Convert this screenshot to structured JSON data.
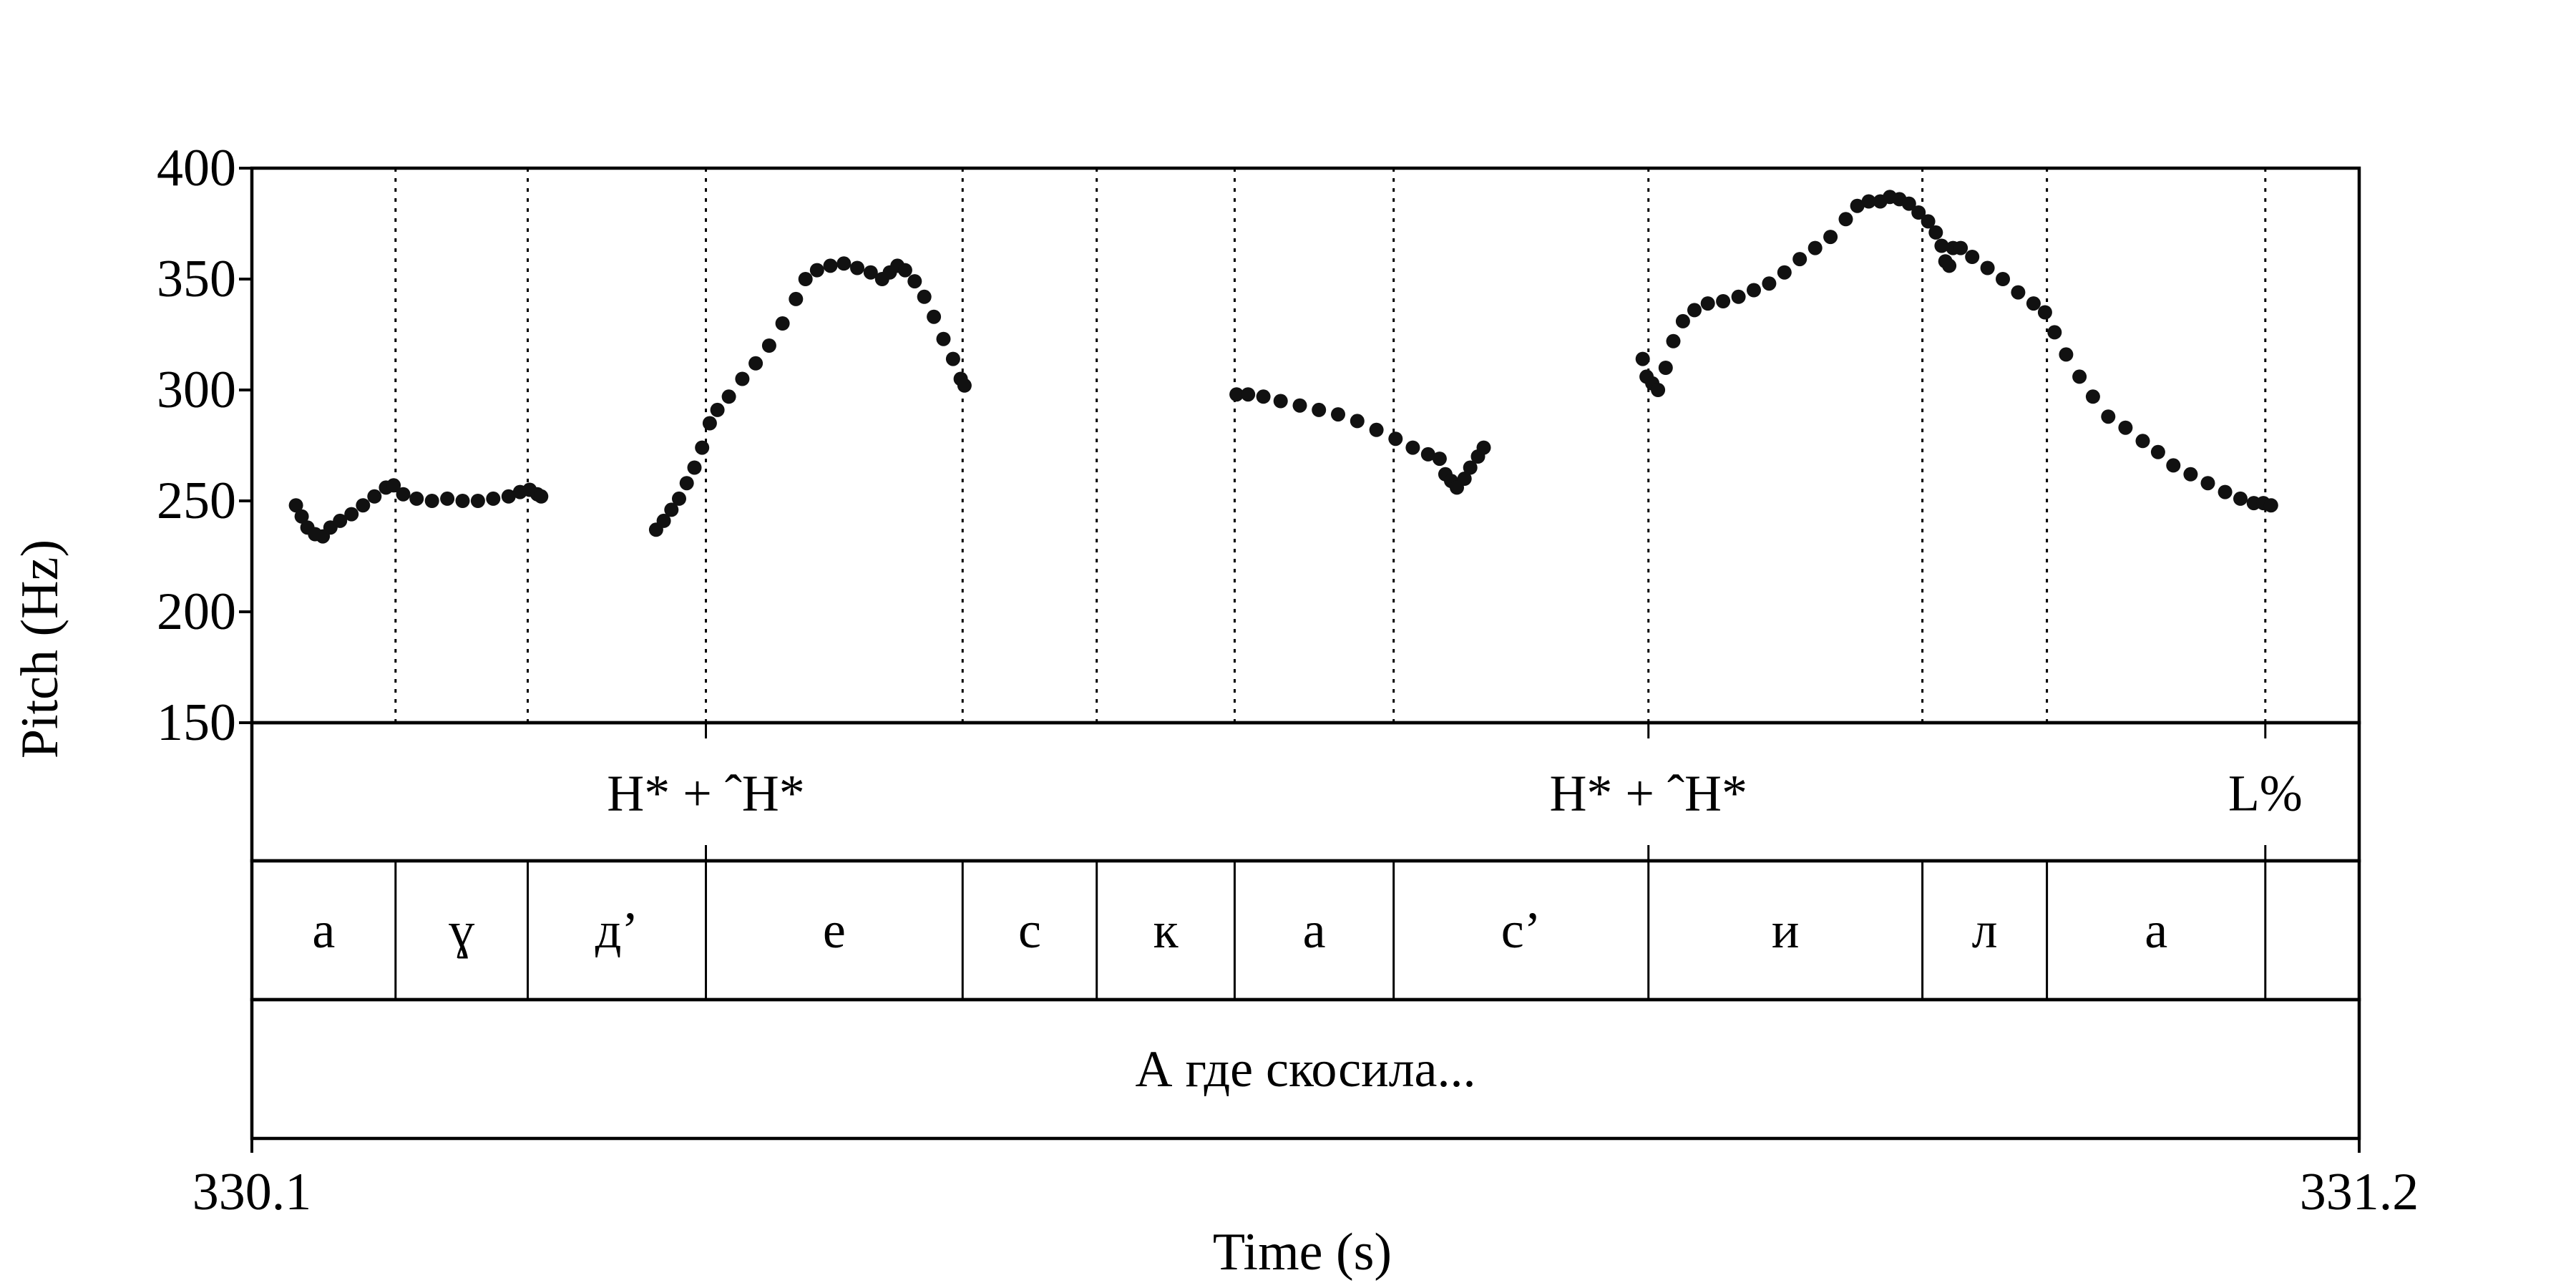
{
  "chart_data": {
    "type": "scatter",
    "title": "",
    "xlabel": "Time (s)",
    "ylabel": "Pitch (Hz)",
    "xlim": [
      330.1,
      331.2
    ],
    "ylim": [
      150,
      400
    ],
    "xtick_labels": [
      "330.1",
      "331.2"
    ],
    "yticks": [
      150,
      200,
      250,
      300,
      350,
      400
    ],
    "ytick_labels": [
      "150",
      "200",
      "250",
      "300",
      "350",
      "400"
    ],
    "grid": false,
    "legend": "none",
    "marker_color": "#111111",
    "segment_boundaries": [
      330.175,
      330.244,
      330.337,
      330.471,
      330.541,
      330.613,
      330.696,
      330.829,
      330.972,
      331.037,
      331.151
    ],
    "tone_tier": [
      {
        "label": "H* + ˆH*",
        "time": 330.337
      },
      {
        "label": "H* + ˆH*",
        "time": 330.829
      },
      {
        "label": "L%",
        "time": 331.151
      }
    ],
    "segments": [
      {
        "label": "а",
        "start": 330.1,
        "end": 330.175
      },
      {
        "label": "ɣ",
        "start": 330.175,
        "end": 330.244
      },
      {
        "label": "д’",
        "start": 330.244,
        "end": 330.337
      },
      {
        "label": "е",
        "start": 330.337,
        "end": 330.471
      },
      {
        "label": "с",
        "start": 330.471,
        "end": 330.541
      },
      {
        "label": "к",
        "start": 330.541,
        "end": 330.613
      },
      {
        "label": "а",
        "start": 330.613,
        "end": 330.696
      },
      {
        "label": "с’",
        "start": 330.696,
        "end": 330.829
      },
      {
        "label": "и",
        "start": 330.829,
        "end": 330.972
      },
      {
        "label": "л",
        "start": 330.972,
        "end": 331.037
      },
      {
        "label": "а",
        "start": 331.037,
        "end": 331.151
      },
      {
        "label": "",
        "start": 331.151,
        "end": 331.2
      }
    ],
    "phrase_tier": [
      {
        "label": "А где скосила...",
        "start": 330.1,
        "end": 331.2
      }
    ],
    "series": [
      {
        "points": [
          [
            330.123,
            248
          ],
          [
            330.126,
            243
          ],
          [
            330.129,
            238
          ],
          [
            330.133,
            235
          ],
          [
            330.137,
            234
          ],
          [
            330.141,
            238
          ],
          [
            330.146,
            241
          ],
          [
            330.152,
            244
          ],
          [
            330.158,
            248
          ],
          [
            330.164,
            252
          ],
          [
            330.17,
            256
          ],
          [
            330.174,
            257
          ],
          [
            330.179,
            253
          ],
          [
            330.186,
            251
          ],
          [
            330.194,
            250
          ],
          [
            330.202,
            251
          ],
          [
            330.21,
            250
          ],
          [
            330.218,
            250
          ],
          [
            330.226,
            251
          ],
          [
            330.234,
            252
          ],
          [
            330.24,
            254
          ],
          [
            330.245,
            255
          ],
          [
            330.249,
            253
          ],
          [
            330.251,
            252
          ]
        ]
      },
      {
        "points": [
          [
            330.311,
            237
          ],
          [
            330.315,
            241
          ],
          [
            330.319,
            246
          ],
          [
            330.323,
            251
          ],
          [
            330.327,
            258
          ],
          [
            330.331,
            265
          ],
          [
            330.335,
            274
          ],
          [
            330.339,
            285
          ],
          [
            330.343,
            291
          ],
          [
            330.349,
            297
          ],
          [
            330.356,
            305
          ],
          [
            330.363,
            312
          ],
          [
            330.37,
            320
          ],
          [
            330.377,
            330
          ],
          [
            330.384,
            341
          ],
          [
            330.389,
            350
          ],
          [
            330.395,
            354
          ],
          [
            330.402,
            356
          ],
          [
            330.409,
            357
          ],
          [
            330.416,
            355
          ],
          [
            330.423,
            353
          ],
          [
            330.429,
            350
          ],
          [
            330.433,
            353
          ],
          [
            330.437,
            356
          ],
          [
            330.441,
            354
          ],
          [
            330.446,
            349
          ],
          [
            330.451,
            342
          ],
          [
            330.456,
            333
          ],
          [
            330.461,
            323
          ],
          [
            330.466,
            314
          ],
          [
            330.47,
            305
          ],
          [
            330.472,
            302
          ]
        ]
      },
      {
        "points": [
          [
            330.614,
            298
          ],
          [
            330.62,
            298
          ],
          [
            330.628,
            297
          ],
          [
            330.637,
            295
          ],
          [
            330.647,
            293
          ],
          [
            330.657,
            291
          ],
          [
            330.667,
            289
          ],
          [
            330.677,
            286
          ],
          [
            330.687,
            282
          ],
          [
            330.697,
            278
          ],
          [
            330.706,
            274
          ],
          [
            330.714,
            271
          ],
          [
            330.72,
            269
          ],
          [
            330.723,
            262
          ],
          [
            330.726,
            259
          ],
          [
            330.729,
            256
          ],
          [
            330.733,
            260
          ],
          [
            330.736,
            265
          ],
          [
            330.74,
            270
          ],
          [
            330.743,
            274
          ]
        ]
      },
      {
        "points": [
          [
            330.826,
            314
          ],
          [
            330.828,
            306
          ],
          [
            330.831,
            303
          ],
          [
            330.834,
            300
          ],
          [
            330.838,
            310
          ],
          [
            330.842,
            322
          ],
          [
            330.847,
            331
          ],
          [
            330.853,
            336
          ],
          [
            330.86,
            339
          ],
          [
            330.868,
            340
          ],
          [
            330.876,
            342
          ],
          [
            330.884,
            345
          ],
          [
            330.892,
            348
          ],
          [
            330.9,
            353
          ],
          [
            330.908,
            359
          ],
          [
            330.916,
            364
          ],
          [
            330.924,
            369
          ],
          [
            330.932,
            377
          ],
          [
            330.938,
            383
          ],
          [
            330.944,
            385
          ],
          [
            330.95,
            385
          ],
          [
            330.955,
            387
          ],
          [
            330.96,
            386
          ],
          [
            330.965,
            384
          ],
          [
            330.97,
            380
          ],
          [
            330.975,
            376
          ],
          [
            330.979,
            371
          ],
          [
            330.982,
            365
          ],
          [
            330.984,
            358
          ],
          [
            330.986,
            356
          ],
          [
            330.988,
            364
          ],
          [
            330.992,
            364
          ],
          [
            330.998,
            360
          ],
          [
            331.006,
            355
          ],
          [
            331.014,
            350
          ],
          [
            331.022,
            344
          ],
          [
            331.03,
            339
          ],
          [
            331.036,
            335
          ],
          [
            331.041,
            326
          ],
          [
            331.047,
            316
          ],
          [
            331.054,
            306
          ],
          [
            331.061,
            297
          ],
          [
            331.069,
            288
          ],
          [
            331.078,
            283
          ],
          [
            331.087,
            277
          ],
          [
            331.095,
            272
          ],
          [
            331.103,
            266
          ],
          [
            331.112,
            262
          ],
          [
            331.121,
            258
          ],
          [
            331.13,
            254
          ],
          [
            331.138,
            251
          ],
          [
            331.145,
            249
          ],
          [
            331.15,
            249
          ],
          [
            331.154,
            248
          ]
        ]
      }
    ]
  }
}
